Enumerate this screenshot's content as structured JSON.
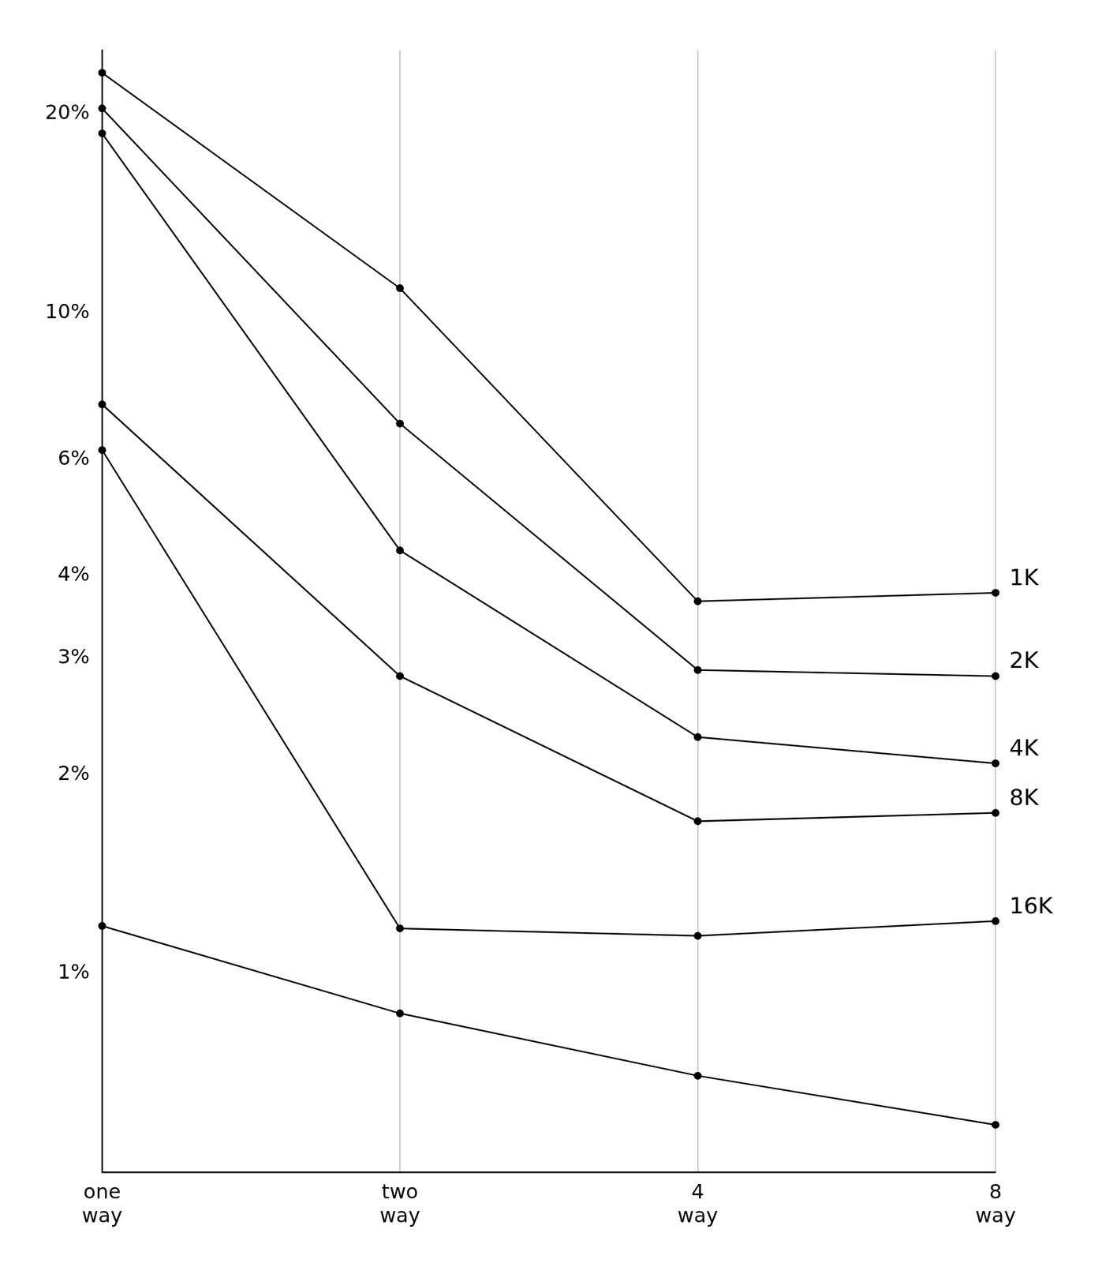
{
  "chart_data": {
    "type": "line",
    "categories": [
      "one way",
      "two way",
      "4 way",
      "8 way"
    ],
    "series": [
      {
        "name": "1K",
        "color": "#000000",
        "values": [
          23.1,
          10.9,
          3.66,
          3.77
        ]
      },
      {
        "name": "2K",
        "color": "#000000",
        "values": [
          20.4,
          6.8,
          2.88,
          2.82
        ]
      },
      {
        "name": "4K",
        "color": "#000000",
        "values": [
          18.7,
          4.37,
          2.28,
          2.08
        ]
      },
      {
        "name": "8K",
        "color": "#000000",
        "values": [
          7.27,
          2.82,
          1.7,
          1.75
        ]
      },
      {
        "name": "16K",
        "color": "#000000",
        "values": [
          6.2,
          1.17,
          1.14,
          1.2
        ]
      },
      {
        "color": "#000000",
        "values": [
          1.18,
          0.87,
          0.7,
          0.59
        ]
      }
    ],
    "ylim": [
      0.5,
      25
    ],
    "yticks": [
      {
        "value": 1,
        "label": "1%"
      },
      {
        "value": 2,
        "label": "2%"
      },
      {
        "value": 3,
        "label": "3%"
      },
      {
        "value": 4,
        "label": "4%"
      },
      {
        "value": 6,
        "label": "6%"
      },
      {
        "value": 10,
        "label": "10%"
      },
      {
        "value": 20,
        "label": "20%"
      }
    ],
    "log": "y",
    "grid": true,
    "marker": "circle"
  }
}
